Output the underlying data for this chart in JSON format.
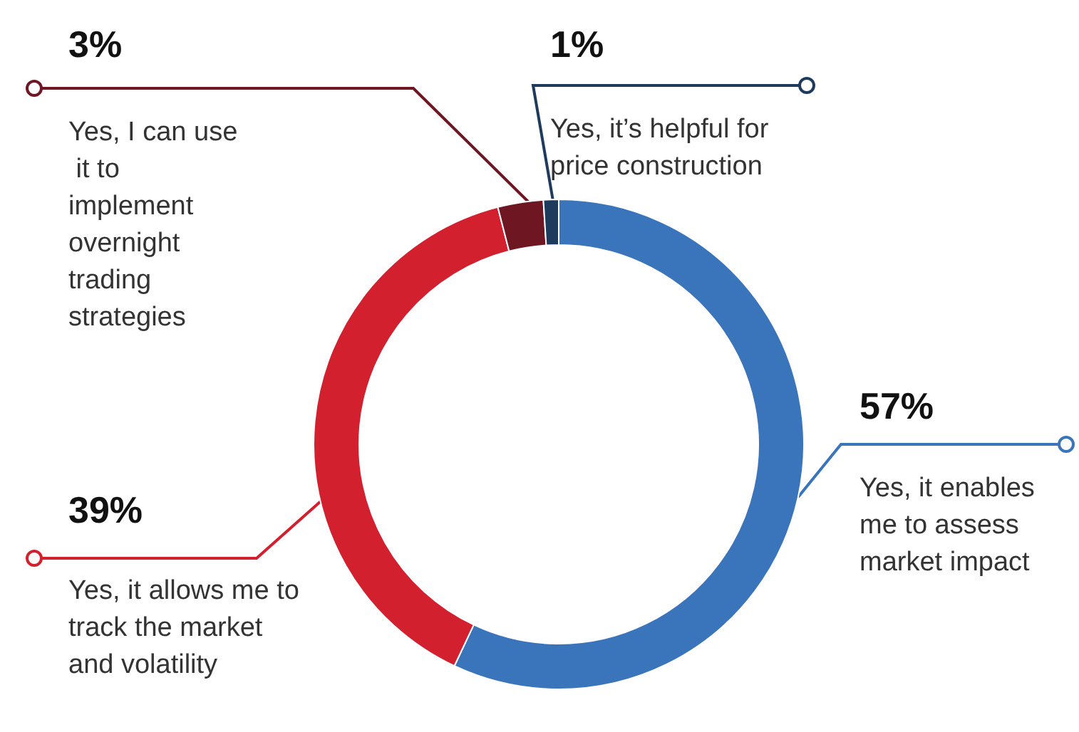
{
  "chart_data": {
    "type": "donut",
    "categories": [
      "Yes, it enables me to assess market impact",
      "Yes, it allows me to track the market and volatility",
      "Yes, I can use it to implement overnight trading strategies",
      "Yes, it’s helpful for price construction"
    ],
    "values": [
      57,
      39,
      3,
      1
    ],
    "colors": [
      "#3a74ba",
      "#d2202f",
      "#6e1621",
      "#1e3b5e"
    ],
    "value_labels": [
      "57%",
      "39%",
      "3%",
      "1%"
    ],
    "legend": false
  }
}
